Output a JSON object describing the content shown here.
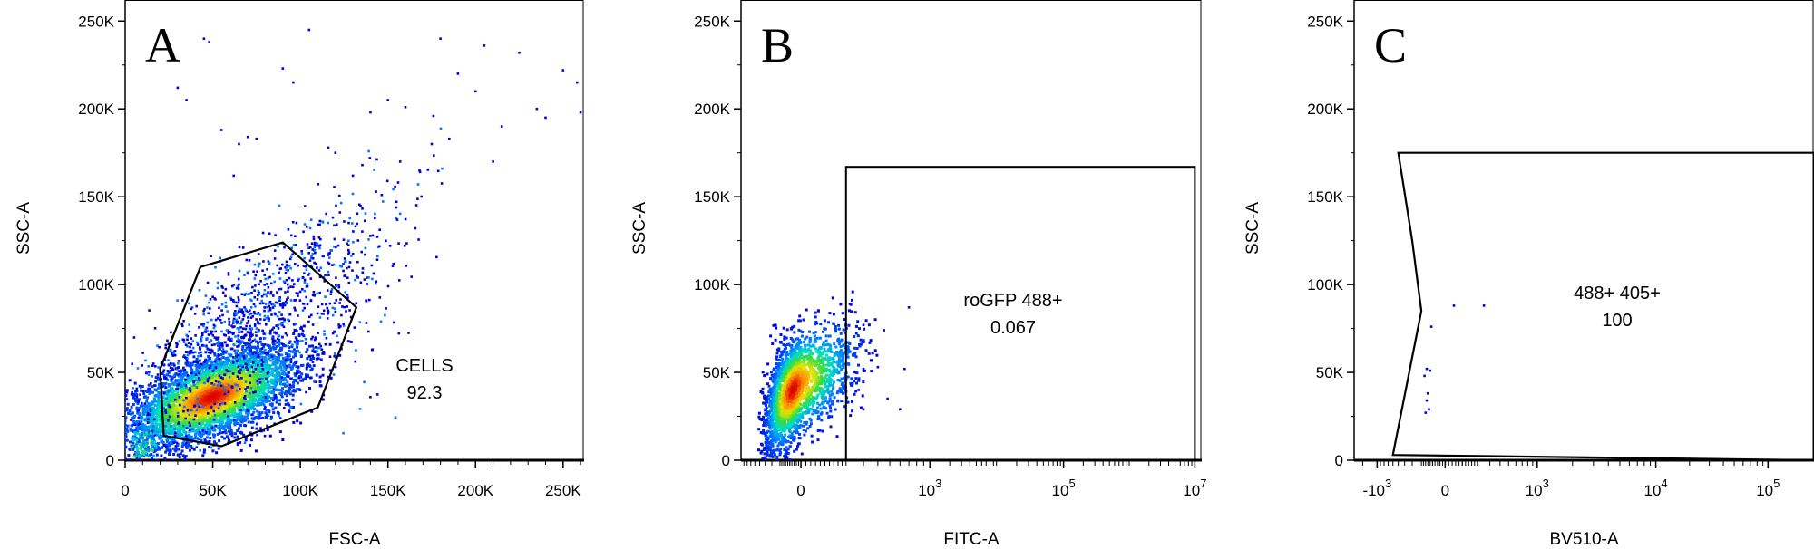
{
  "chart_data": [
    {
      "type": "scatter",
      "panel_label": "A",
      "xlabel": "FSC-A",
      "ylabel": "SSC-A",
      "x_scale": "linear",
      "xlim": [
        0,
        262000
      ],
      "ylim": [
        0,
        262000
      ],
      "x_ticks": [
        {
          "v": 0,
          "label": "0"
        },
        {
          "v": 50000,
          "label": "50K"
        },
        {
          "v": 100000,
          "label": "100K"
        },
        {
          "v": 150000,
          "label": "150K"
        },
        {
          "v": 200000,
          "label": "200K"
        },
        {
          "v": 250000,
          "label": "250K"
        }
      ],
      "y_ticks": [
        {
          "v": 0,
          "label": "0"
        },
        {
          "v": 50000,
          "label": "50K"
        },
        {
          "v": 100000,
          "label": "100K"
        },
        {
          "v": 150000,
          "label": "150K"
        },
        {
          "v": 200000,
          "label": "200K"
        },
        {
          "v": 250000,
          "label": "250K"
        }
      ],
      "gate": {
        "shape": "polygon",
        "name": "CELLS",
        "value": "92.3",
        "vertices": [
          [
            20000,
            52000
          ],
          [
            43000,
            110000
          ],
          [
            90000,
            124000
          ],
          [
            132000,
            87000
          ],
          [
            110000,
            30000
          ],
          [
            55000,
            8000
          ],
          [
            22000,
            14000
          ]
        ]
      },
      "population": {
        "description": "dense cell cluster",
        "center": [
          50000,
          36000
        ],
        "spread": [
          22000,
          14000
        ],
        "n_points": 4500
      },
      "sparse_events": [
        [
          30000,
          212000
        ],
        [
          45000,
          240000
        ],
        [
          48000,
          238000
        ],
        [
          55000,
          188000
        ],
        [
          65000,
          180000
        ],
        [
          70000,
          184000
        ],
        [
          75000,
          183000
        ],
        [
          90000,
          223000
        ],
        [
          96000,
          215000
        ],
        [
          105000,
          245000
        ],
        [
          116000,
          178000
        ],
        [
          120000,
          175000
        ],
        [
          130000,
          162000
        ],
        [
          140000,
          198000
        ],
        [
          150000,
          205000
        ],
        [
          157000,
          170000
        ],
        [
          160000,
          201000
        ],
        [
          168000,
          165000
        ],
        [
          175000,
          180000
        ],
        [
          180000,
          240000
        ],
        [
          190000,
          220000
        ],
        [
          200000,
          210000
        ],
        [
          210000,
          170000
        ],
        [
          215000,
          190000
        ],
        [
          225000,
          232000
        ],
        [
          235000,
          200000
        ],
        [
          240000,
          195000
        ],
        [
          250000,
          222000
        ],
        [
          258000,
          215000
        ],
        [
          260000,
          198000
        ],
        [
          205000,
          236000
        ],
        [
          185000,
          183000
        ],
        [
          176000,
          196000
        ],
        [
          62000,
          162000
        ],
        [
          35000,
          205000
        ]
      ]
    },
    {
      "type": "scatter",
      "panel_label": "B",
      "xlabel": "FITC-A",
      "ylabel": "SSC-A",
      "x_scale": "biexponential",
      "xlim": [
        -1000,
        10000000
      ],
      "ylim": [
        0,
        262000
      ],
      "x_ticks": [
        {
          "v": 0,
          "label": "0"
        },
        {
          "v": 1000,
          "label": "10",
          "exp": "3"
        },
        {
          "v": 100000,
          "label": "10",
          "exp": "5"
        },
        {
          "v": 10000000,
          "label": "10",
          "exp": "7"
        }
      ],
      "y_ticks": [
        {
          "v": 0,
          "label": "0"
        },
        {
          "v": 50000,
          "label": "50K"
        },
        {
          "v": 100000,
          "label": "100K"
        },
        {
          "v": 150000,
          "label": "150K"
        },
        {
          "v": 200000,
          "label": "200K"
        },
        {
          "v": 250000,
          "label": "250K"
        }
      ],
      "gate": {
        "shape": "rectangle",
        "name": "roGFP 488+",
        "value": "0.067",
        "x_range": [
          200,
          10000000
        ],
        "y_range": [
          0,
          167000
        ]
      },
      "population": {
        "description": "dense cell cluster",
        "center": [
          -70,
          40000
        ],
        "spread": [
          150,
          17000
        ],
        "n_points": 2500
      },
      "sparse_events": [
        [
          220,
          89000
        ],
        [
          300,
          77000
        ],
        [
          450,
          74000
        ],
        [
          700,
          87000
        ],
        [
          250,
          50000
        ],
        [
          300,
          52000
        ],
        [
          400,
          53000
        ],
        [
          650,
          52000
        ],
        [
          270,
          40000
        ],
        [
          300,
          29000
        ],
        [
          480,
          35000
        ],
        [
          600,
          29000
        ]
      ]
    },
    {
      "type": "scatter",
      "panel_label": "C",
      "xlabel": "BV510-A",
      "ylabel": "SSC-A",
      "x_scale": "biexponential",
      "xlim": [
        -3000,
        200000
      ],
      "ylim": [
        0,
        262000
      ],
      "x_ticks": [
        {
          "v": -1000,
          "label": "-10",
          "exp": "3"
        },
        {
          "v": 0,
          "label": "0"
        },
        {
          "v": 1000,
          "label": "10",
          "exp": "3"
        },
        {
          "v": 10000,
          "label": "10",
          "exp": "4"
        },
        {
          "v": 100000,
          "label": "10",
          "exp": "5"
        }
      ],
      "y_ticks": [
        {
          "v": 0,
          "label": "0"
        },
        {
          "v": 50000,
          "label": "50K"
        },
        {
          "v": 100000,
          "label": "100K"
        },
        {
          "v": 150000,
          "label": "150K"
        },
        {
          "v": 200000,
          "label": "200K"
        },
        {
          "v": 250000,
          "label": "250K"
        }
      ],
      "gate": {
        "shape": "polygon",
        "name": "488+ 405+",
        "value": "100",
        "vertices": [
          [
            -600,
            3000
          ],
          [
            -200,
            85000
          ],
          [
            -300,
            125000
          ],
          [
            -500,
            175000
          ],
          [
            200000,
            175000
          ],
          [
            200000,
            0
          ],
          [
            -600,
            3000
          ]
        ]
      },
      "population": {
        "description": "sparse gated events",
        "center": [
          -150,
          40000
        ],
        "spread": [
          60,
          9000
        ],
        "n_points": 0
      },
      "sparse_events": [
        [
          -150,
          52000
        ],
        [
          -120,
          51000
        ],
        [
          -170,
          48000
        ],
        [
          -140,
          38000
        ],
        [
          -150,
          34000
        ],
        [
          -160,
          27000
        ],
        [
          -130,
          29000
        ],
        [
          -110,
          76000
        ],
        [
          50,
          88000
        ],
        [
          250,
          88000
        ]
      ]
    }
  ]
}
